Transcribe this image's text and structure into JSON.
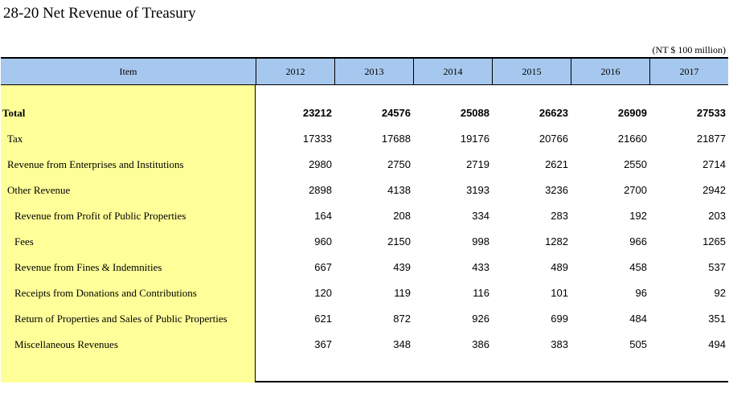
{
  "title": "28-20  Net Revenue of Treasury",
  "unit": "(NT $ 100 million)",
  "header": {
    "item": "Item",
    "years": [
      "2012",
      "2013",
      "2014",
      "2015",
      "2016",
      "2017"
    ]
  },
  "colors": {
    "header_bg": "#a7c8ee",
    "item_bg": "#ffff99"
  },
  "rows": [
    {
      "label": "Total",
      "values": [
        "23212",
        "24576",
        "25088",
        "26623",
        "26909",
        "27533"
      ]
    },
    {
      "label": "Tax",
      "values": [
        "17333",
        "17688",
        "19176",
        "20766",
        "21660",
        "21877"
      ]
    },
    {
      "label": "Revenue from Enterprises and Institutions",
      "values": [
        "2980",
        "2750",
        "2719",
        "2621",
        "2550",
        "2714"
      ]
    },
    {
      "label": "Other Revenue",
      "values": [
        "2898",
        "4138",
        "3193",
        "3236",
        "2700",
        "2942"
      ]
    },
    {
      "label": "Revenue from Profit of Public Properties",
      "values": [
        "164",
        "208",
        "334",
        "283",
        "192",
        "203"
      ]
    },
    {
      "label": "Fees",
      "values": [
        "960",
        "2150",
        "998",
        "1282",
        "966",
        "1265"
      ]
    },
    {
      "label": "Revenue from Fines & Indemnities",
      "values": [
        "667",
        "439",
        "433",
        "489",
        "458",
        "537"
      ]
    },
    {
      "label": "Receipts from Donations and Contributions",
      "values": [
        "120",
        "119",
        "116",
        "101",
        "96",
        "92"
      ]
    },
    {
      "label": "Return of Properties and Sales of Public Properties",
      "values": [
        "621",
        "872",
        "926",
        "699",
        "484",
        "351"
      ]
    },
    {
      "label": "Miscellaneous Revenues",
      "values": [
        "367",
        "348",
        "386",
        "383",
        "505",
        "494"
      ]
    }
  ]
}
